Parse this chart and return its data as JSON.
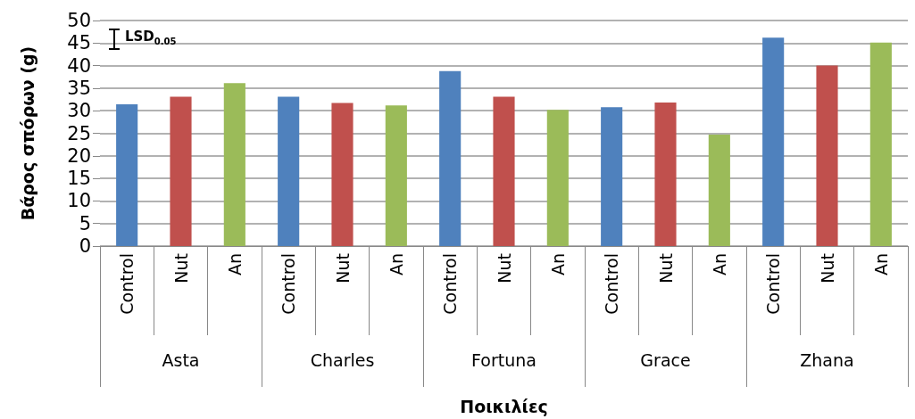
{
  "chart_data": {
    "type": "bar",
    "xlabel": "Ποικιλίες",
    "ylabel": "Βάρος σπόρων (g)",
    "categories": [
      "Control",
      "Nut",
      "An",
      "Control",
      "Nut",
      "An",
      "Control",
      "Nut",
      "An",
      "Control",
      "Nut",
      "An",
      "Control",
      "Nut",
      "An"
    ],
    "values": [
      31.4,
      33.1,
      36.1,
      33.1,
      31.7,
      31.2,
      38.8,
      33.1,
      30.2,
      30.8,
      31.8,
      24.7,
      46.2,
      40.0,
      45.1
    ],
    "colors": [
      "#4f81bd",
      "#c0504d",
      "#9bbb59",
      "#4f81bd",
      "#c0504d",
      "#9bbb59",
      "#4f81bd",
      "#c0504d",
      "#9bbb59",
      "#4f81bd",
      "#c0504d",
      "#9bbb59",
      "#4f81bd",
      "#c0504d",
      "#9bbb59"
    ],
    "ylim": [
      0,
      50
    ],
    "yticks": [
      0,
      5,
      10,
      15,
      20,
      25,
      30,
      35,
      40,
      45,
      50
    ],
    "grid": "y",
    "annotations": [
      "LSD$_{0.05}$",
      "Asta",
      "Charles",
      "Fortuna",
      "Grace",
      "Zhana"
    ]
  }
}
